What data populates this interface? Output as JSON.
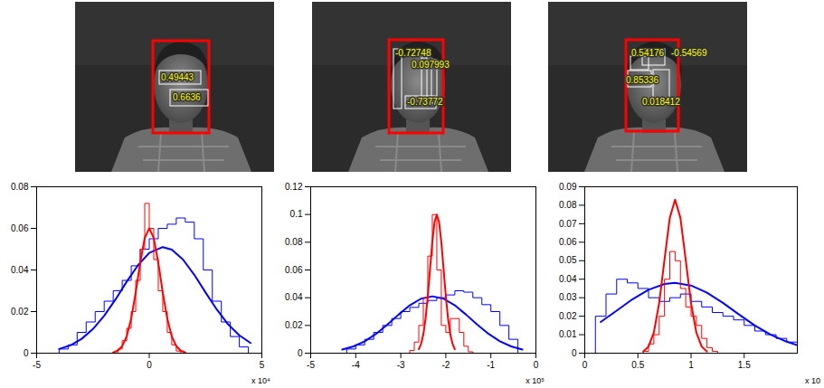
{
  "images": [
    {
      "labels": [
        "0.49443",
        "0.6636"
      ]
    },
    {
      "labels": [
        "-0.72748",
        "0.097993",
        "-0.73772"
      ]
    },
    {
      "labels": [
        "0.54176",
        "-0.54569",
        "0.85336",
        "0.018412"
      ]
    }
  ],
  "chart_data": [
    {
      "type": "histogram",
      "xlabel": "x 10⁴",
      "xlim": [
        -5,
        5
      ],
      "xticks": [
        -5,
        0,
        5
      ],
      "ylim": [
        0,
        0.08
      ],
      "yticks": [
        0,
        0.02,
        0.04,
        0.06,
        0.08
      ],
      "series": [
        {
          "type": "step",
          "color": "#0000ff",
          "bins": [
            -4,
            -3.6,
            -3.2,
            -2.8,
            -2.4,
            -2,
            -1.6,
            -1.2,
            -0.8,
            -0.4,
            0,
            0.4,
            0.8,
            1.2,
            1.6,
            2,
            2.4,
            2.8,
            3.2,
            3.6,
            4,
            4.4
          ],
          "values": [
            0.002,
            0.004,
            0.01,
            0.015,
            0.02,
            0.025,
            0.03,
            0.035,
            0.042,
            0.05,
            0.055,
            0.06,
            0.062,
            0.065,
            0.063,
            0.055,
            0.04,
            0.025,
            0.015,
            0.008,
            0.003
          ]
        },
        {
          "type": "line",
          "color": "#0000ff",
          "x": [
            -4,
            -3.5,
            -3,
            -2.5,
            -2,
            -1.5,
            -1,
            -0.5,
            0,
            0.6,
            1,
            1.5,
            2,
            2.5,
            3,
            3.5,
            4,
            4.5
          ],
          "values": [
            0.002,
            0.0038,
            0.0069,
            0.0116,
            0.018,
            0.0258,
            0.0344,
            0.0423,
            0.0482,
            0.051,
            0.0498,
            0.045,
            0.0377,
            0.0292,
            0.021,
            0.0139,
            0.0086,
            0.0049
          ]
        },
        {
          "type": "step",
          "color": "#ff0000",
          "bins": [
            -1.4,
            -1.2,
            -1,
            -0.8,
            -0.6,
            -0.4,
            -0.2,
            0,
            0.2,
            0.4,
            0.6,
            0.8,
            1,
            1.2,
            1.4
          ],
          "values": [
            0.002,
            0.006,
            0.012,
            0.02,
            0.035,
            0.05,
            0.072,
            0.06,
            0.045,
            0.03,
            0.02,
            0.01,
            0.004,
            0.001
          ]
        },
        {
          "type": "line",
          "color": "#ff0000",
          "x": [
            -1.6,
            -1.4,
            -1.2,
            -1,
            -0.8,
            -0.6,
            -0.4,
            -0.2,
            0,
            0.2,
            0.4,
            0.6,
            0.8,
            1,
            1.2,
            1.4,
            1.6
          ],
          "values": [
            0.0004,
            0.0012,
            0.0034,
            0.0081,
            0.0167,
            0.0292,
            0.0436,
            0.0554,
            0.06,
            0.0554,
            0.0436,
            0.0292,
            0.0167,
            0.0081,
            0.0034,
            0.0012,
            0.0004
          ]
        }
      ]
    },
    {
      "type": "histogram",
      "xlabel": "x 10⁵",
      "xlim": [
        -5,
        0
      ],
      "xticks": [
        -5,
        -4,
        -3,
        -2,
        -1,
        0
      ],
      "ylim": [
        0,
        0.12
      ],
      "yticks": [
        0,
        0.02,
        0.04,
        0.06,
        0.08,
        0.1,
        0.12
      ],
      "series": [
        {
          "type": "step",
          "color": "#0000ff",
          "bins": [
            -4.2,
            -4,
            -3.8,
            -3.6,
            -3.4,
            -3.2,
            -3,
            -2.8,
            -2.6,
            -2.4,
            -2.2,
            -2,
            -1.8,
            -1.6,
            -1.4,
            -1.2,
            -1,
            -0.8,
            -0.6,
            -0.4
          ],
          "values": [
            0.003,
            0.006,
            0.01,
            0.015,
            0.02,
            0.025,
            0.03,
            0.033,
            0.036,
            0.038,
            0.04,
            0.042,
            0.045,
            0.044,
            0.04,
            0.035,
            0.03,
            0.02,
            0.01
          ]
        },
        {
          "type": "line",
          "color": "#0000ff",
          "x": [
            -4.3,
            -4.05,
            -3.8,
            -3.55,
            -3.3,
            -3.05,
            -2.8,
            -2.55,
            -2.3,
            -2.05,
            -1.8,
            -1.55,
            -1.3,
            -1.05,
            -0.8,
            -0.55,
            -0.3
          ],
          "values": [
            0.0026,
            0.0049,
            0.0086,
            0.0139,
            0.0205,
            0.0278,
            0.0345,
            0.0393,
            0.041,
            0.0393,
            0.0345,
            0.0278,
            0.0205,
            0.0139,
            0.0086,
            0.0049,
            0.0026
          ]
        },
        {
          "type": "step",
          "color": "#ff0000",
          "bins": [
            -2.8,
            -2.7,
            -2.6,
            -2.5,
            -2.4,
            -2.3,
            -2.2,
            -2.1,
            -2,
            -1.9,
            -1.8,
            -1.7,
            -1.6,
            -1.5,
            -1.4
          ],
          "values": [
            0.002,
            0.008,
            0.02,
            0.04,
            0.07,
            0.1,
            0.06,
            0.02,
            0.015,
            0.025,
            0.025,
            0.015,
            0.005,
            0.001
          ]
        },
        {
          "type": "line",
          "color": "#ff0000",
          "x": [
            -2.6,
            -2.55,
            -2.5,
            -2.45,
            -2.4,
            -2.35,
            -2.3,
            -2.25,
            -2.2,
            -2.15,
            -2.1,
            -2.05,
            -2,
            -1.95,
            -1.9,
            -1.85,
            -1.8
          ],
          "values": [
            0.0028,
            0.0066,
            0.0135,
            0.0249,
            0.0411,
            0.0607,
            0.0801,
            0.0946,
            0.1,
            0.0946,
            0.0801,
            0.0607,
            0.0411,
            0.0249,
            0.0135,
            0.0066,
            0.0028
          ]
        }
      ]
    },
    {
      "type": "histogram",
      "xlabel": "x 10",
      "xlim": [
        0,
        2
      ],
      "xticks": [
        0,
        0.5,
        1,
        1.5
      ],
      "ylim": [
        0,
        0.09
      ],
      "yticks": [
        0,
        0.01,
        0.02,
        0.03,
        0.04,
        0.05,
        0.06,
        0.07,
        0.08,
        0.09
      ],
      "series": [
        {
          "type": "step",
          "color": "#0000ff",
          "bins": [
            0.1,
            0.2,
            0.3,
            0.4,
            0.5,
            0.6,
            0.7,
            0.8,
            0.9,
            1,
            1.1,
            1.2,
            1.3,
            1.4,
            1.5,
            1.6,
            1.7,
            1.8,
            1.9,
            2
          ],
          "values": [
            0.02,
            0.032,
            0.04,
            0.038,
            0.035,
            0.03,
            0.028,
            0.03,
            0.032,
            0.028,
            0.025,
            0.022,
            0.02,
            0.018,
            0.015,
            0.012,
            0.01,
            0.008,
            0.006
          ]
        },
        {
          "type": "line",
          "color": "#0000ff",
          "x": [
            0.15,
            0.3,
            0.45,
            0.6,
            0.75,
            0.85,
            1,
            1.15,
            1.3,
            1.45,
            1.6,
            1.75,
            1.9,
            2
          ],
          "values": [
            0.0169,
            0.023,
            0.0292,
            0.0343,
            0.0374,
            0.038,
            0.0366,
            0.0327,
            0.0272,
            0.021,
            0.015,
            0.01,
            0.0062,
            0.0043
          ]
        },
        {
          "type": "step",
          "color": "#ff0000",
          "bins": [
            0.55,
            0.6,
            0.65,
            0.7,
            0.75,
            0.8,
            0.85,
            0.9,
            0.95,
            1,
            1.05,
            1.1,
            1.15,
            1.2,
            1.25
          ],
          "values": [
            0.001,
            0.005,
            0.01,
            0.02,
            0.04,
            0.055,
            0.05,
            0.035,
            0.025,
            0.02,
            0.015,
            0.008,
            0.003,
            0.001
          ]
        },
        {
          "type": "line",
          "color": "#ff0000",
          "x": [
            0.55,
            0.6,
            0.65,
            0.7,
            0.75,
            0.8,
            0.85,
            0.9,
            0.95,
            1,
            1.05,
            1.1,
            1.15
          ],
          "values": [
            0.0009,
            0.0036,
            0.0112,
            0.027,
            0.0504,
            0.0732,
            0.083,
            0.0732,
            0.0504,
            0.027,
            0.0112,
            0.0036,
            0.0009
          ]
        }
      ]
    }
  ]
}
